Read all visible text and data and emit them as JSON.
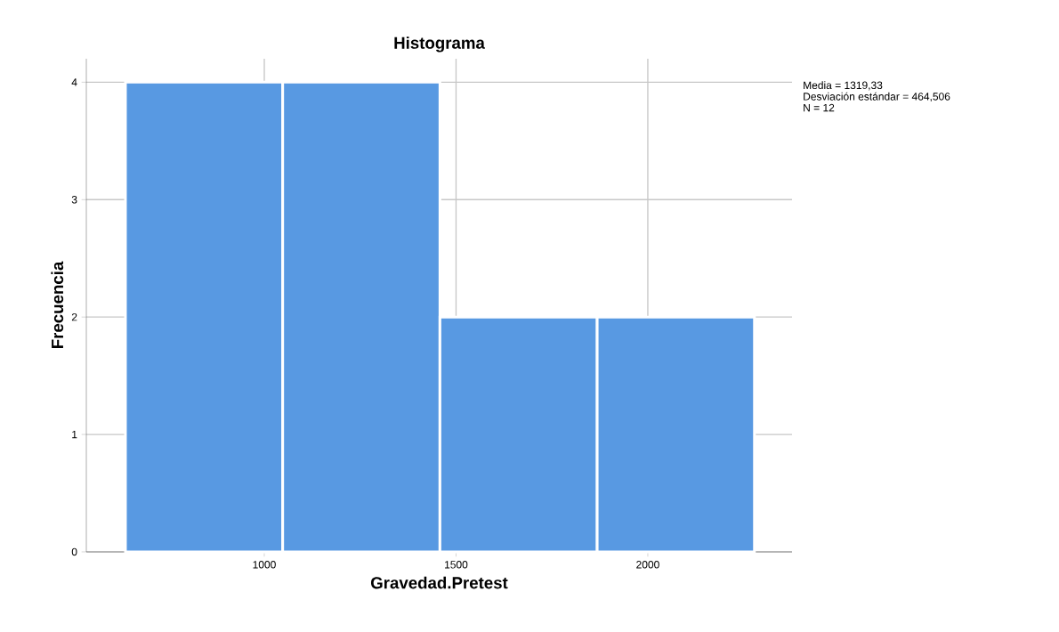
{
  "chart_data": {
    "type": "histogram",
    "title": "Histograma",
    "xlabel": "Gravedad.Pretest",
    "ylabel": "Frecuencia",
    "bins": [
      638,
      1048,
      1458,
      1868,
      2278
    ],
    "values": [
      4,
      4,
      2,
      2
    ],
    "color": "#5899e2",
    "xlim": [
      536,
      2376
    ],
    "ylim": [
      0,
      4.2
    ],
    "xticks": [
      1000,
      1500,
      2000
    ],
    "yticks": [
      0,
      1,
      2,
      3,
      4
    ],
    "grid": true,
    "annotations": [
      "Media = 1319,33",
      "Desviación estándar = 464,506",
      "N = 12"
    ]
  }
}
